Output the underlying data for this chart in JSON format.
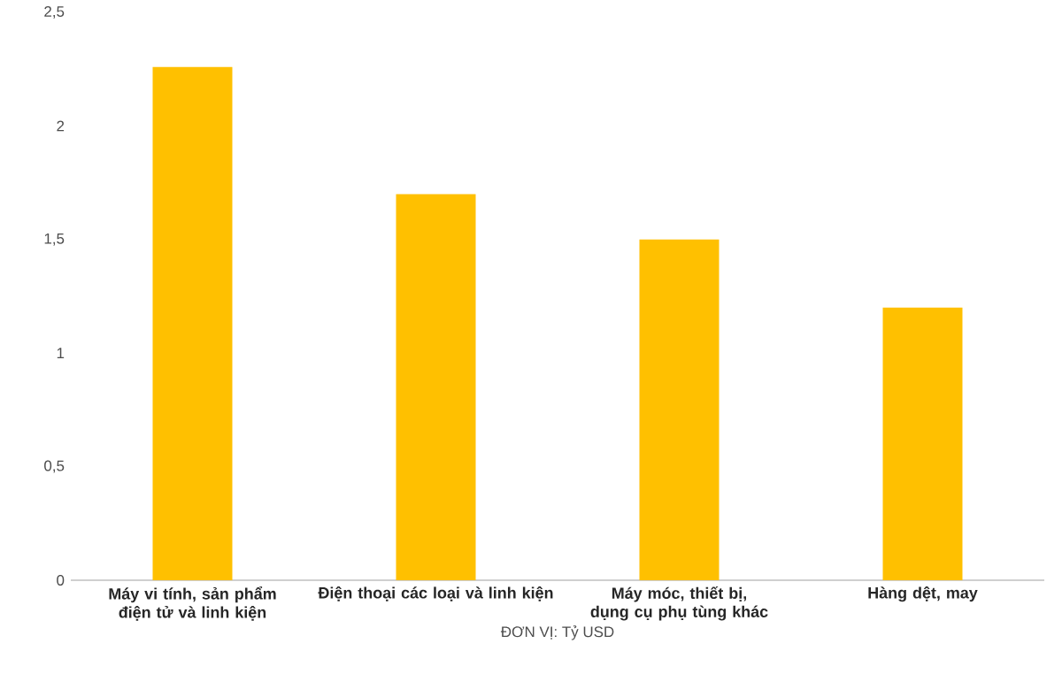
{
  "chart_data": {
    "type": "bar",
    "xlabel": "ĐƠN VỊ: Tỷ USD",
    "categories": [
      "Máy vi tính, sản phẩm điện tử và linh kiện",
      "Điện thoại các loại và linh kiện",
      "Máy móc, thiết bị, dụng cụ phụ tùng khác",
      "Hàng dệt, may"
    ],
    "values": [
      2.26,
      1.7,
      1.5,
      1.2
    ],
    "color": "#ffc000",
    "ylim": [
      0,
      2.5
    ],
    "yticks": [
      0,
      {
        "value": 0.5,
        "label": "0,5"
      },
      1,
      {
        "value": 1.5,
        "label": "1,5"
      },
      2,
      {
        "value": 2.5,
        "label": "2,5"
      }
    ],
    "grid": false
  }
}
